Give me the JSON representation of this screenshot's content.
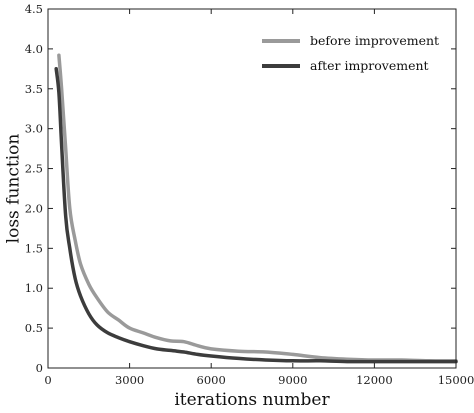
{
  "chart_data": {
    "type": "line",
    "title": "",
    "xlabel": "iterations number",
    "ylabel": "loss function",
    "xlim": [
      0,
      15000
    ],
    "ylim": [
      0,
      4.5
    ],
    "xticks": [
      0,
      3000,
      6000,
      9000,
      12000,
      15000
    ],
    "xtick_labels": [
      "0",
      "3000",
      "6000",
      "9000",
      "12000",
      "15000"
    ],
    "yticks": [
      0,
      0.5,
      1.0,
      1.5,
      2.0,
      2.5,
      3.0,
      3.5,
      4.0,
      4.5
    ],
    "ytick_labels": [
      "0",
      "0.5",
      "1.0",
      "1.5",
      "2.0",
      "2.5",
      "3.0",
      "3.5",
      "4.0",
      "4.5"
    ],
    "grid": false,
    "legend_position": "top-right",
    "series": [
      {
        "name": "before improvement",
        "color": "#9a9a9a",
        "x": [
          400,
          500,
          650,
          800,
          1000,
          1200,
          1500,
          1800,
          2200,
          2600,
          3000,
          3500,
          4000,
          4500,
          5000,
          5500,
          6000,
          7000,
          8000,
          9000,
          10000,
          11000,
          12000,
          13000,
          14000,
          15000
        ],
        "y": [
          3.92,
          3.5,
          2.75,
          2.0,
          1.6,
          1.3,
          1.05,
          0.88,
          0.7,
          0.6,
          0.5,
          0.44,
          0.38,
          0.34,
          0.33,
          0.28,
          0.24,
          0.21,
          0.2,
          0.17,
          0.13,
          0.11,
          0.1,
          0.1,
          0.09,
          0.09
        ]
      },
      {
        "name": "after improvement",
        "color": "#3c3c3c",
        "x": [
          300,
          400,
          500,
          650,
          800,
          1000,
          1200,
          1500,
          1800,
          2200,
          2600,
          3000,
          3500,
          4000,
          4500,
          5000,
          5500,
          6000,
          7000,
          8000,
          9000,
          10000,
          11000,
          12000,
          13000,
          14000,
          15000
        ],
        "y": [
          3.75,
          3.45,
          2.8,
          1.9,
          1.5,
          1.12,
          0.9,
          0.68,
          0.54,
          0.44,
          0.38,
          0.33,
          0.28,
          0.24,
          0.22,
          0.2,
          0.17,
          0.15,
          0.12,
          0.1,
          0.09,
          0.09,
          0.08,
          0.08,
          0.08,
          0.08,
          0.08
        ]
      }
    ]
  }
}
